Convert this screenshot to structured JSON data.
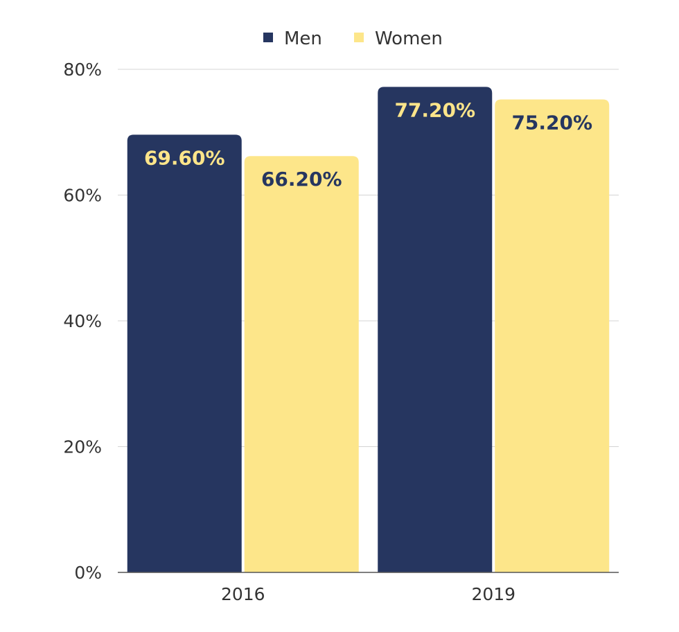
{
  "chart_data": {
    "type": "bar",
    "categories": [
      "2016",
      "2019"
    ],
    "series": [
      {
        "name": "Men",
        "values": [
          69.6,
          77.2
        ],
        "labels": [
          "69.60%",
          "77.20%"
        ],
        "color": "#263660",
        "label_color": "#FDE58A"
      },
      {
        "name": "Women",
        "values": [
          66.2,
          75.2
        ],
        "labels": [
          "66.20%",
          "75.20%"
        ],
        "color": "#FDE68A",
        "label_color": "#263660"
      }
    ],
    "ylim": [
      0,
      80
    ],
    "yticks": [
      0,
      20,
      40,
      60,
      80
    ],
    "ytick_labels": [
      "0%",
      "20%",
      "40%",
      "60%",
      "80%"
    ],
    "legend_position": "top-center",
    "grid": true
  }
}
